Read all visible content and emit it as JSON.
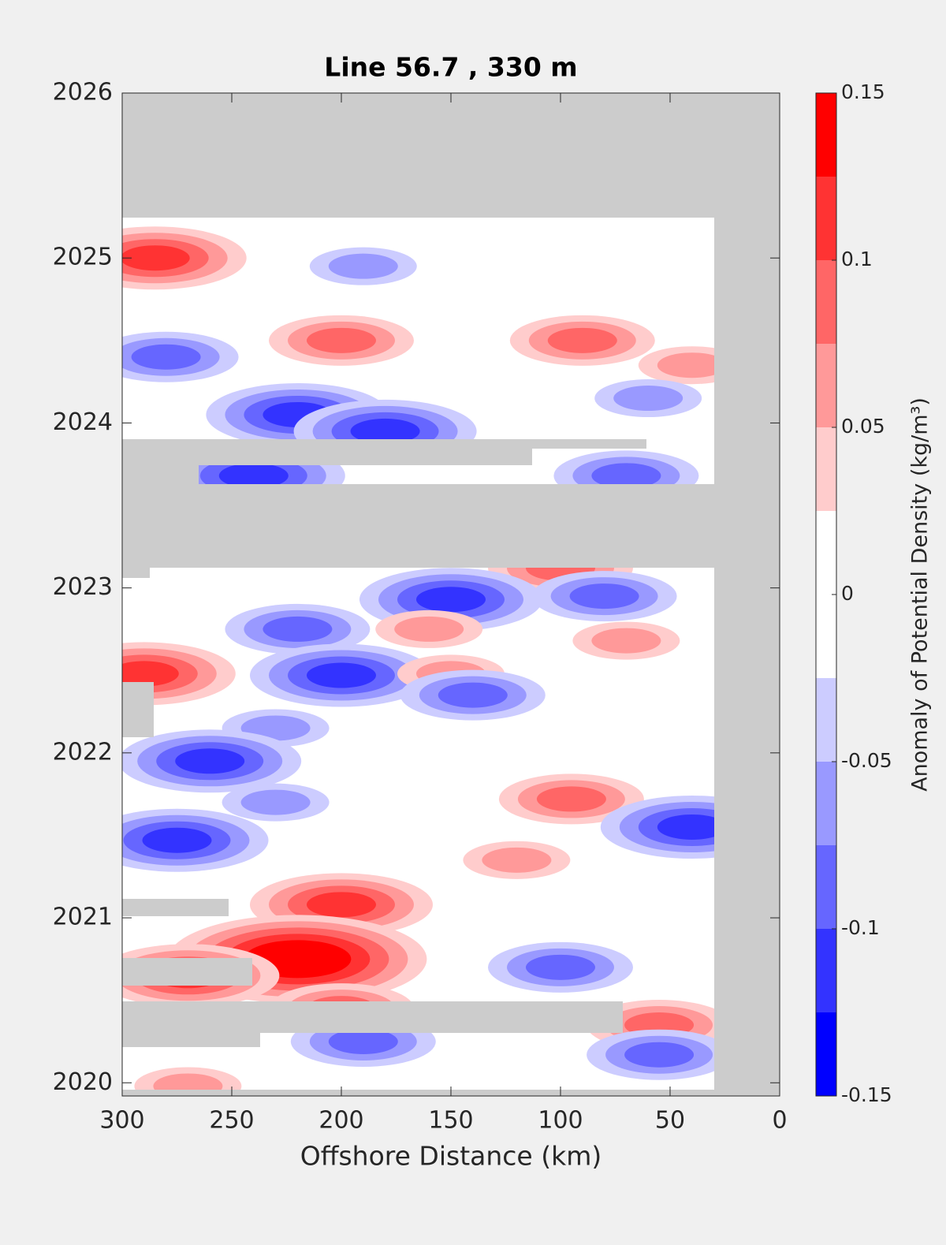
{
  "chart_data": {
    "type": "contour",
    "title": "Line 56.7 , 330 m",
    "xlabel": "Offshore Distance (km)",
    "colorbar_label": "Anomaly of Potential Density (kg/m³)",
    "xlim": [
      300,
      0
    ],
    "xticks": [
      300,
      250,
      200,
      150,
      100,
      50,
      0
    ],
    "ylim": [
      2019.92,
      2026
    ],
    "yticks": [
      2020,
      2021,
      2022,
      2023,
      2024,
      2025,
      2026
    ],
    "clim": [
      -0.15,
      0.15
    ],
    "cticks": [
      -0.15,
      -0.1,
      -0.05,
      0,
      0.05,
      0.1,
      0.15
    ],
    "colors": [
      "#0000ff",
      "#3333ff",
      "#6666ff",
      "#9999ff",
      "#ccccff",
      "#ffffff",
      "#ffffff",
      "#ffcccc",
      "#ff9999",
      "#ff6666",
      "#ff3333",
      "#ff0000"
    ],
    "features": [
      {
        "x": 285,
        "y": 2025.0,
        "value": 0.11
      },
      {
        "x": 190,
        "y": 2024.95,
        "value": -0.07
      },
      {
        "x": 200,
        "y": 2024.5,
        "value": 0.08
      },
      {
        "x": 90,
        "y": 2024.5,
        "value": 0.09
      },
      {
        "x": 40,
        "y": 2024.35,
        "value": 0.07
      },
      {
        "x": 280,
        "y": 2024.4,
        "value": -0.08
      },
      {
        "x": 220,
        "y": 2024.05,
        "value": -0.1
      },
      {
        "x": 180,
        "y": 2023.95,
        "value": -0.11
      },
      {
        "x": 60,
        "y": 2024.15,
        "value": -0.07
      },
      {
        "x": 240,
        "y": 2023.68,
        "value": -0.1
      },
      {
        "x": 70,
        "y": 2023.68,
        "value": -0.09
      },
      {
        "x": 100,
        "y": 2023.12,
        "value": 0.09
      },
      {
        "x": 150,
        "y": 2022.93,
        "value": -0.1
      },
      {
        "x": 80,
        "y": 2022.95,
        "value": -0.08
      },
      {
        "x": 220,
        "y": 2022.75,
        "value": -0.08
      },
      {
        "x": 160,
        "y": 2022.75,
        "value": 0.07
      },
      {
        "x": 70,
        "y": 2022.68,
        "value": 0.07
      },
      {
        "x": 290,
        "y": 2022.48,
        "value": 0.12
      },
      {
        "x": 200,
        "y": 2022.47,
        "value": -0.11
      },
      {
        "x": 150,
        "y": 2022.48,
        "value": 0.06
      },
      {
        "x": 140,
        "y": 2022.35,
        "value": -0.09
      },
      {
        "x": 230,
        "y": 2022.15,
        "value": -0.06
      },
      {
        "x": 260,
        "y": 2021.95,
        "value": -0.1
      },
      {
        "x": 95,
        "y": 2021.72,
        "value": 0.08
      },
      {
        "x": 230,
        "y": 2021.7,
        "value": -0.07
      },
      {
        "x": 275,
        "y": 2021.47,
        "value": -0.1
      },
      {
        "x": 40,
        "y": 2021.55,
        "value": -0.11
      },
      {
        "x": 120,
        "y": 2021.35,
        "value": 0.07
      },
      {
        "x": 200,
        "y": 2021.08,
        "value": 0.1
      },
      {
        "x": 220,
        "y": 2020.75,
        "value": 0.15
      },
      {
        "x": 270,
        "y": 2020.65,
        "value": 0.11
      },
      {
        "x": 100,
        "y": 2020.7,
        "value": -0.09
      },
      {
        "x": 200,
        "y": 2020.45,
        "value": 0.09
      },
      {
        "x": 55,
        "y": 2020.35,
        "value": 0.08
      },
      {
        "x": 190,
        "y": 2020.25,
        "value": -0.09
      },
      {
        "x": 55,
        "y": 2020.17,
        "value": -0.09
      },
      {
        "x": 270,
        "y": 2019.98,
        "value": 0.06
      }
    ]
  }
}
